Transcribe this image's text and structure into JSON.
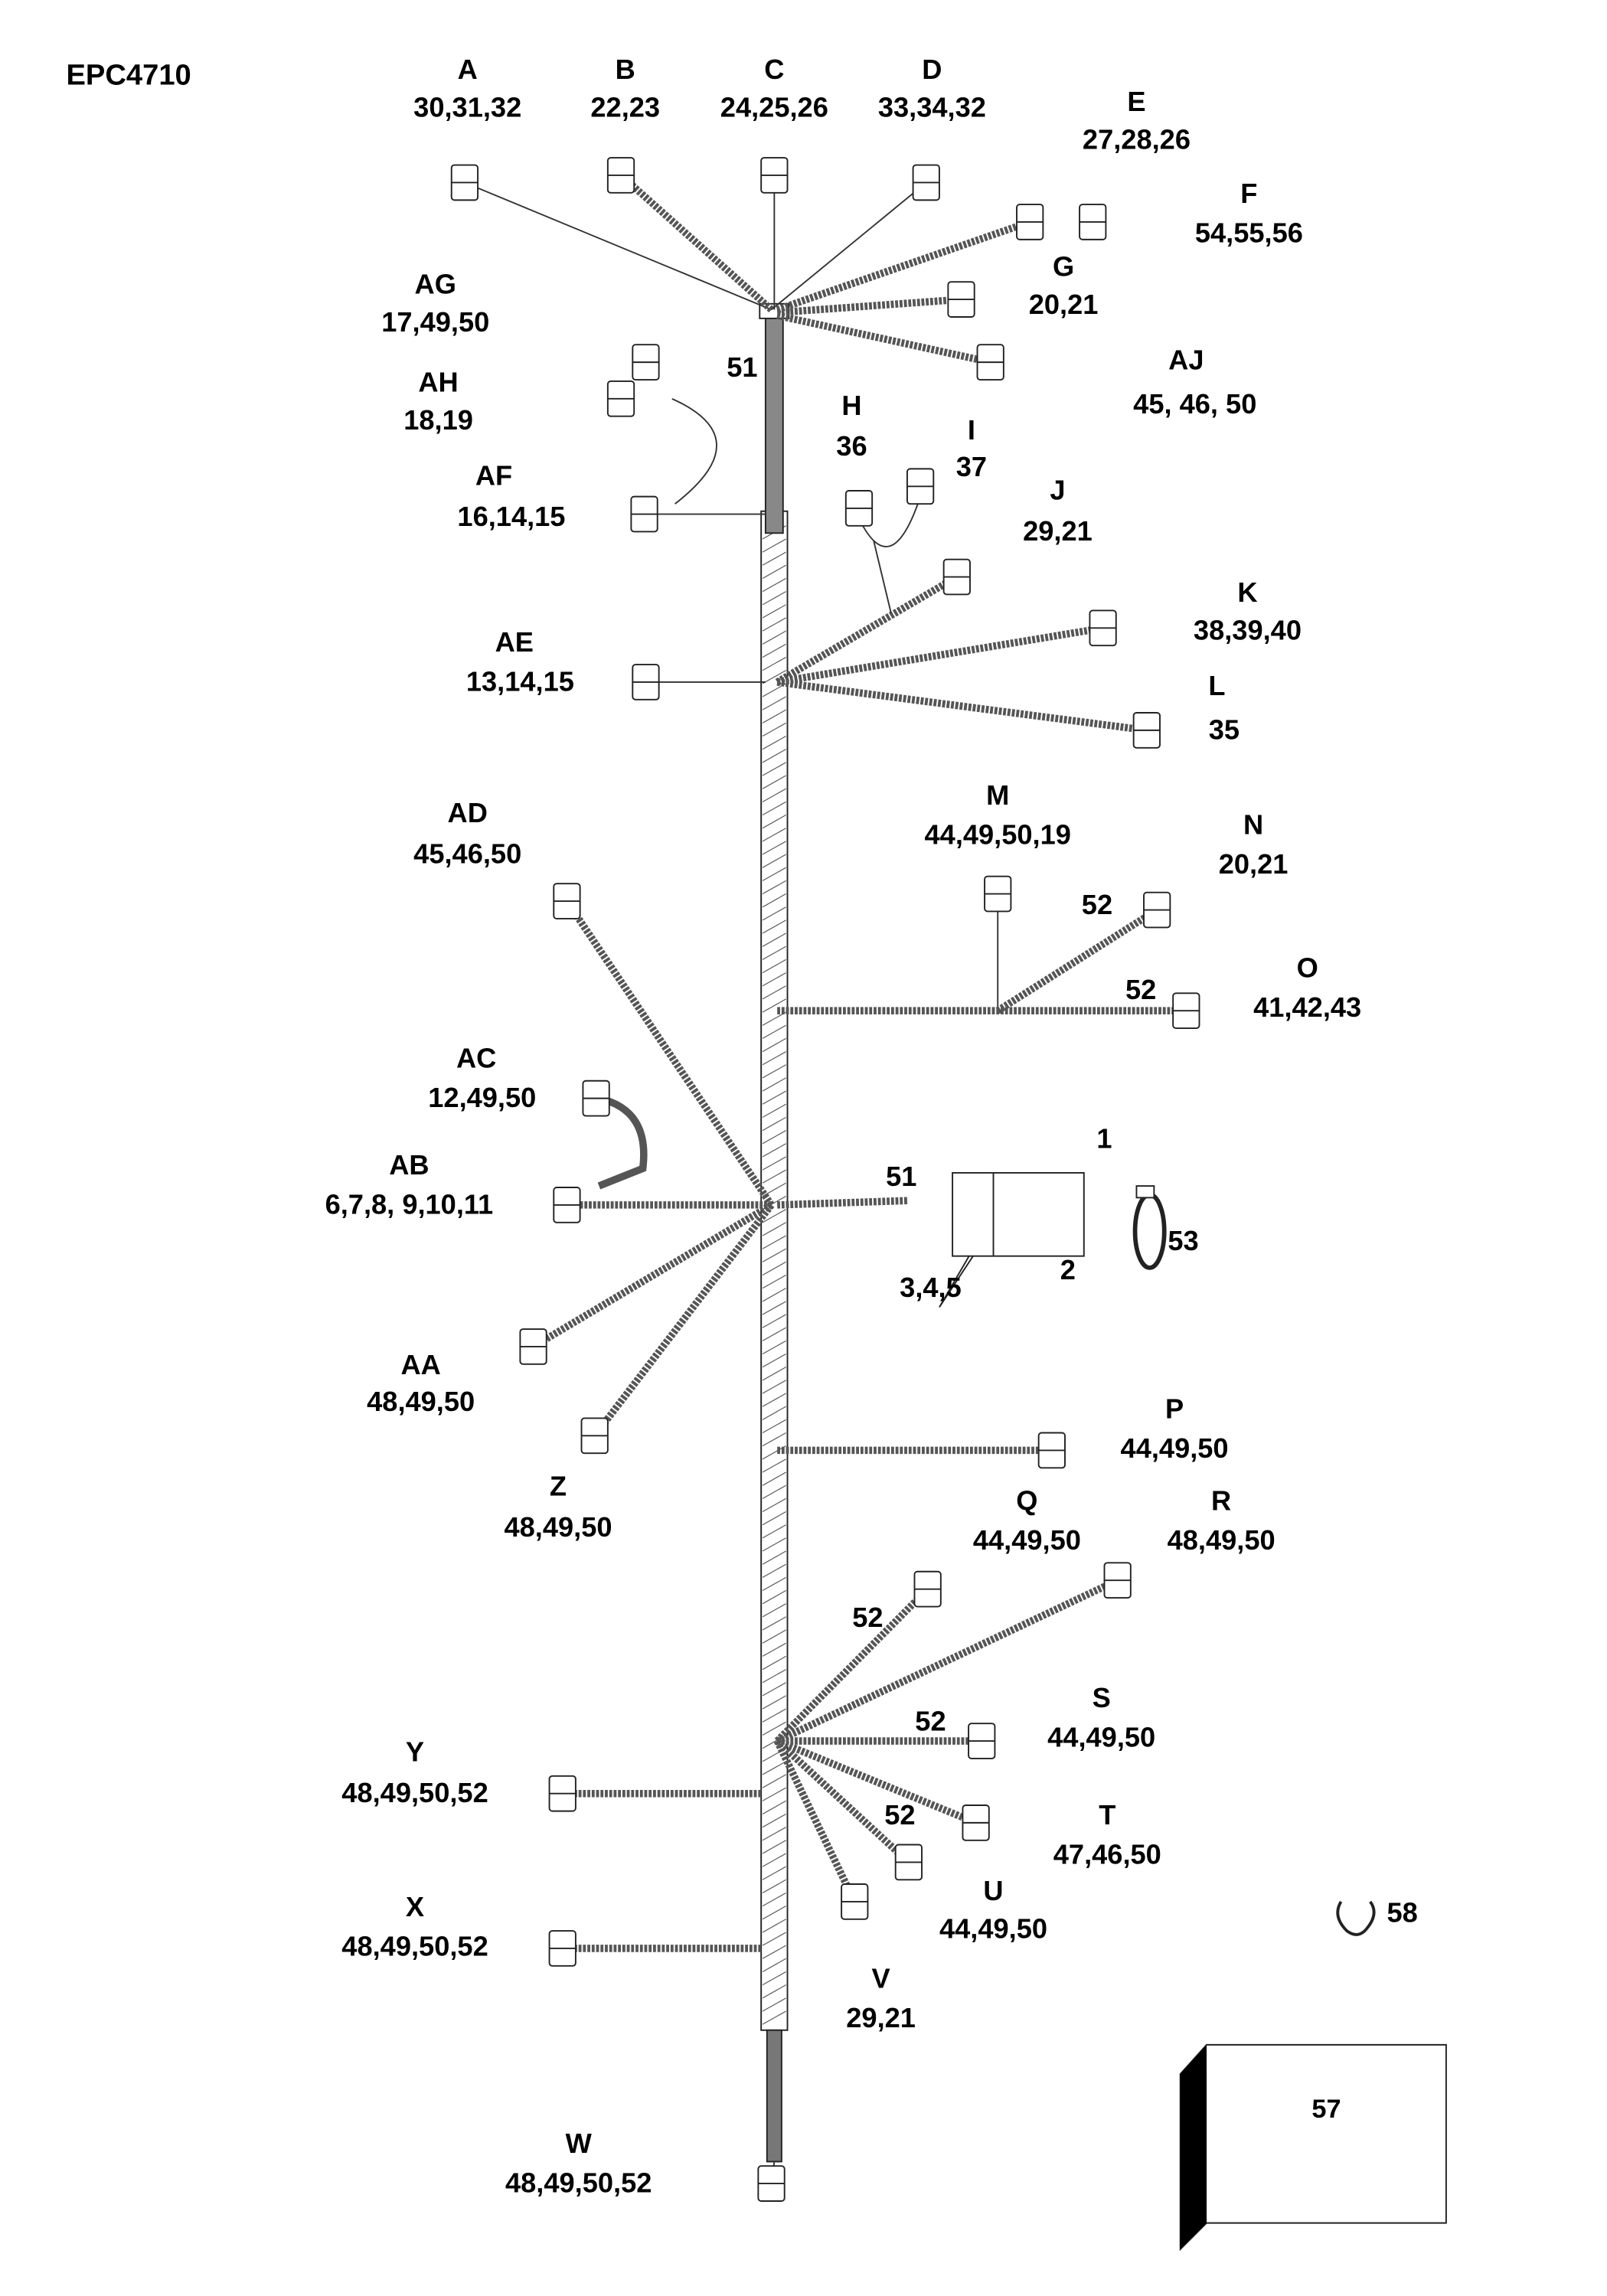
{
  "title": "EPC4710",
  "callouts": {
    "A": {
      "letter": "A",
      "parts": "30,31,32"
    },
    "B": {
      "letter": "B",
      "parts": "22,23"
    },
    "C": {
      "letter": "C",
      "parts": "24,25,26"
    },
    "D": {
      "letter": "D",
      "parts": "33,34,32"
    },
    "E": {
      "letter": "E",
      "parts": "27,28,26"
    },
    "F": {
      "letter": "F",
      "parts": "54,55,56"
    },
    "G": {
      "letter": "G",
      "parts": "20,21"
    },
    "AJ": {
      "letter": "AJ",
      "parts": "45, 46, 50"
    },
    "AG": {
      "letter": "AG",
      "parts": "17,49,50"
    },
    "AH": {
      "letter": "AH",
      "parts": "18,19"
    },
    "AF": {
      "letter": "AF",
      "parts": "16,14,15"
    },
    "H": {
      "letter": "H",
      "parts": "36"
    },
    "I": {
      "letter": "I",
      "parts": "37"
    },
    "J": {
      "letter": "J",
      "parts": "29,21"
    },
    "K": {
      "letter": "K",
      "parts": "38,39,40"
    },
    "L": {
      "letter": "L",
      "parts": "35"
    },
    "AE": {
      "letter": "AE",
      "parts": "13,14,15"
    },
    "AD": {
      "letter": "AD",
      "parts": "45,46,50"
    },
    "M": {
      "letter": "M",
      "parts": "44,49,50,19"
    },
    "N": {
      "letter": "N",
      "parts": "20,21"
    },
    "O": {
      "letter": "O",
      "parts": "41,42,43"
    },
    "AC": {
      "letter": "AC",
      "parts": "12,49,50"
    },
    "AB": {
      "letter": "AB",
      "parts": "6,7,8, 9,10,11"
    },
    "AA": {
      "letter": "AA",
      "parts": "48,49,50"
    },
    "Z": {
      "letter": "Z",
      "parts": "48,49,50"
    },
    "P": {
      "letter": "P",
      "parts": "44,49,50"
    },
    "Q": {
      "letter": "Q",
      "parts": "44,49,50"
    },
    "R": {
      "letter": "R",
      "parts": "48,49,50"
    },
    "S": {
      "letter": "S",
      "parts": "44,49,50"
    },
    "T": {
      "letter": "T",
      "parts": "47,46,50"
    },
    "U": {
      "letter": "U",
      "parts": "44,49,50"
    },
    "V": {
      "letter": "V",
      "parts": "29,21"
    },
    "W": {
      "letter": "W",
      "parts": "48,49,50,52"
    },
    "X": {
      "letter": "X",
      "parts": "48,49,50,52"
    },
    "Y": {
      "letter": "Y",
      "parts": "48,49,50,52"
    }
  },
  "part_numbers": {
    "n51_top": "51",
    "n51_mid": "51",
    "n52_n": "52",
    "n52_o": "52",
    "n52_q": "52",
    "n52_s": "52",
    "n52_t": "52",
    "n1": "1",
    "n2": "2",
    "n345": "3,4,5",
    "n53": "53",
    "n57": "57",
    "n58": "58"
  }
}
